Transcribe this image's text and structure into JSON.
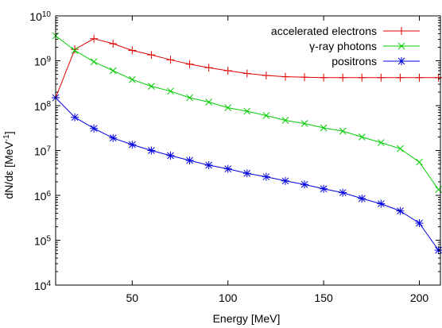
{
  "chart_data": {
    "type": "line",
    "xlabel": "Energy [MeV]",
    "ylabel": "dN/dε [MeV",
    "ylabel_sup": "-1",
    "ylabel_close": "]",
    "xlim": [
      10,
      211
    ],
    "ylim": [
      10000,
      10000000000
    ],
    "yscale": "log",
    "grid": false,
    "legend_position": "top-right",
    "x_ticks": [
      50,
      100,
      150,
      200
    ],
    "x_tick_labels": [
      "50",
      "100",
      "150",
      "200"
    ],
    "y_ticks": [
      10000,
      100000,
      1000000,
      10000000,
      100000000,
      1000000000,
      10000000000
    ],
    "y_tick_labels": [
      {
        "base": "10",
        "exp": "4"
      },
      {
        "base": "10",
        "exp": "5"
      },
      {
        "base": "10",
        "exp": "6"
      },
      {
        "base": "10",
        "exp": "7"
      },
      {
        "base": "10",
        "exp": "8"
      },
      {
        "base": "10",
        "exp": "9"
      },
      {
        "base": "10",
        "exp": "10"
      }
    ],
    "series": [
      {
        "name": "accelerated electrons",
        "color": "#e00000",
        "marker": "plus",
        "x": [
          10,
          20,
          30,
          40,
          50,
          60,
          70,
          80,
          90,
          100,
          110,
          120,
          130,
          140,
          150,
          160,
          170,
          180,
          190,
          200,
          210
        ],
        "y": [
          150000000,
          1800000000,
          3100000000,
          2400000000,
          1700000000,
          1350000000,
          1050000000,
          840000000,
          700000000,
          600000000,
          520000000,
          470000000,
          440000000,
          430000000,
          420000000,
          420000000,
          420000000,
          420000000,
          420000000,
          420000000,
          420000000
        ],
        "lead_in": {
          "x": [
            10,
            10,
            10
          ],
          "y": [
            10000,
            100000000,
            150000000
          ]
        }
      },
      {
        "name": "γ-ray photons",
        "color": "#00cc00",
        "marker": "x",
        "x": [
          10,
          20,
          30,
          40,
          50,
          60,
          70,
          80,
          90,
          100,
          110,
          120,
          130,
          140,
          150,
          160,
          170,
          180,
          190,
          200,
          210
        ],
        "y": [
          3600000000,
          1700000000,
          950000000,
          600000000,
          380000000,
          270000000,
          210000000,
          150000000,
          120000000,
          90000000,
          75000000,
          60000000,
          47000000,
          40000000,
          32000000,
          27000000,
          20000000,
          15000000,
          11000000,
          5500000,
          1350000
        ]
      },
      {
        "name": "positrons",
        "color": "#0000e0",
        "marker": "star",
        "x": [
          10,
          20,
          30,
          40,
          50,
          60,
          70,
          80,
          90,
          100,
          110,
          120,
          130,
          140,
          150,
          160,
          170,
          180,
          190,
          200,
          210
        ],
        "y": [
          150000000,
          55000000,
          31000000,
          19000000,
          13500000,
          10000000,
          7700000,
          6000000,
          4700000,
          3900000,
          3100000,
          2600000,
          2100000,
          1750000,
          1400000,
          1150000,
          850000,
          650000,
          450000,
          240000,
          60000
        ]
      }
    ]
  }
}
